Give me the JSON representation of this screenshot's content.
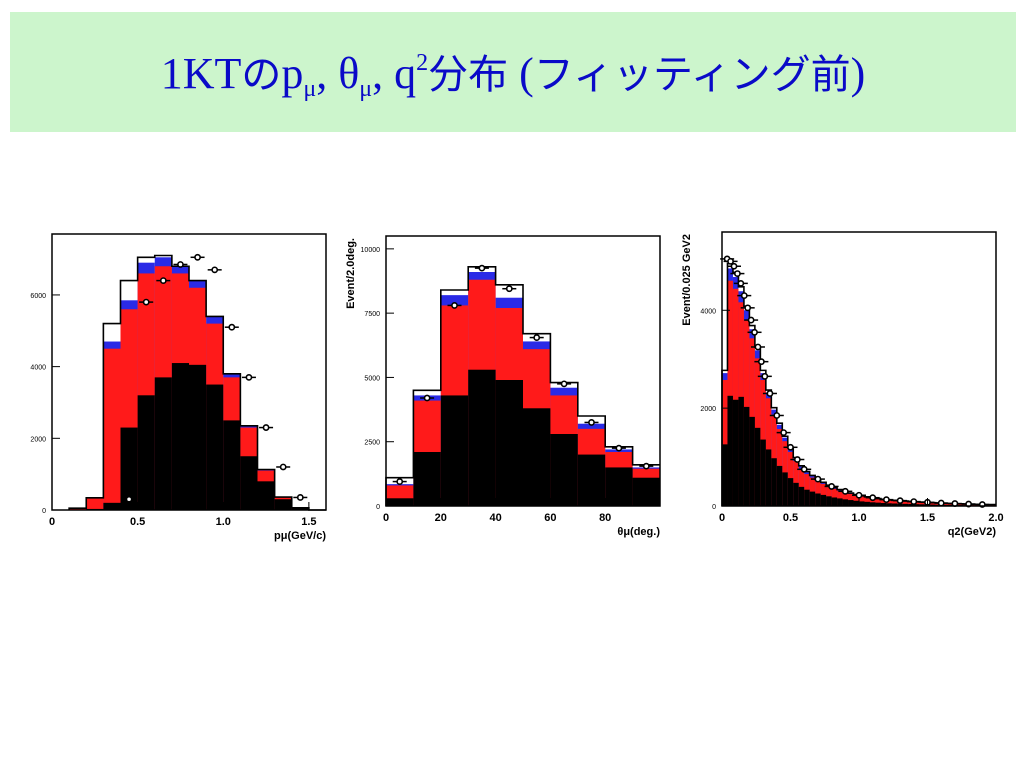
{
  "title": {
    "prefix": "1KT",
    "no": "の",
    "p": "p",
    "mu1": "μ",
    "sep1": ", ",
    "theta": "θ",
    "mu2": "μ",
    "sep2": ", ",
    "q": "q",
    "exp": "2",
    "bunpu": "分布",
    "paren_open": " (",
    "fitting": "フィッティング前",
    "paren_close": ")"
  },
  "colors": {
    "black_component": "#000000",
    "red_component": "#ff1a1a",
    "blue_component": "#2a2ae6",
    "white_component": "#ffffff",
    "outline": "#000000"
  },
  "chart_data": [
    {
      "type": "histogram",
      "stack_order": [
        "black",
        "red",
        "blue",
        "white"
      ],
      "xlabel": "pμ(GeV/c)",
      "ylabel": "",
      "xlim": [
        0,
        1.6
      ],
      "ylim": [
        0,
        7700
      ],
      "xticks": [
        0,
        0.5,
        1.0,
        1.5
      ],
      "xtick_labels": [
        "0",
        "0.5",
        "1.0",
        "1.5"
      ],
      "yticks": [
        0,
        2000,
        4000,
        6000
      ],
      "ytick_labels": [
        "0",
        "2000",
        "4000",
        "6000"
      ],
      "bin_edges": [
        0.1,
        0.2,
        0.3,
        0.4,
        0.5,
        0.6,
        0.7,
        0.8,
        0.9,
        1.0,
        1.1,
        1.2,
        1.3,
        1.4,
        1.5,
        1.6
      ],
      "black": [
        0,
        30,
        200,
        2300,
        3200,
        3700,
        4100,
        4050,
        3500,
        2500,
        1500,
        800,
        300,
        50,
        0
      ],
      "red": [
        50,
        320,
        4500,
        5600,
        6600,
        6800,
        6600,
        6200,
        5200,
        3700,
        2300,
        1100,
        350,
        60,
        0
      ],
      "blue": [
        50,
        330,
        4700,
        5850,
        6900,
        7050,
        6800,
        6400,
        5400,
        3800,
        2350,
        1130,
        360,
        60,
        0
      ],
      "white": [
        50,
        340,
        5200,
        6400,
        7050,
        7100,
        6800,
        6400,
        5400,
        3800,
        2350,
        1130,
        360,
        60,
        0
      ],
      "data_x": [
        0.45,
        0.55,
        0.65,
        0.75,
        0.85,
        0.95,
        1.05,
        1.15,
        1.25,
        1.35,
        1.45
      ],
      "data_y": [
        300,
        5800,
        6400,
        6850,
        7050,
        6700,
        5100,
        3700,
        2300,
        1200,
        350
      ]
    },
    {
      "type": "histogram",
      "stack_order": [
        "black",
        "red",
        "blue",
        "white"
      ],
      "xlabel": "θμ(deg.)",
      "ylabel": "Event/2.0deg.",
      "xlim": [
        0,
        100
      ],
      "ylim": [
        0,
        10500
      ],
      "xticks": [
        0,
        20,
        40,
        60,
        80
      ],
      "xtick_labels": [
        "0",
        "20",
        "40",
        "60",
        "80"
      ],
      "yticks": [
        0,
        2500,
        5000,
        7500,
        10000
      ],
      "ytick_labels": [
        "0",
        "2500",
        "5000",
        "7500",
        "10000"
      ],
      "bin_edges": [
        0,
        10,
        20,
        30,
        40,
        50,
        60,
        70,
        80,
        90,
        100
      ],
      "black": [
        300,
        2100,
        4300,
        5300,
        4900,
        3800,
        2800,
        2000,
        1500,
        1100
      ],
      "red": [
        800,
        4100,
        7800,
        8800,
        7700,
        6100,
        4300,
        3000,
        2100,
        1450
      ],
      "blue": [
        850,
        4300,
        8200,
        9100,
        8100,
        6400,
        4600,
        3200,
        2200,
        1500
      ],
      "white": [
        1100,
        4500,
        8400,
        9300,
        8600,
        6700,
        4800,
        3500,
        2300,
        1600
      ],
      "data_x": [
        5,
        15,
        25,
        35,
        45,
        55,
        65,
        75,
        85,
        95
      ],
      "data_y": [
        950,
        4200,
        7800,
        9250,
        8450,
        6550,
        4750,
        3250,
        2250,
        1550
      ]
    },
    {
      "type": "histogram",
      "stack_order": [
        "black",
        "red",
        "blue",
        "white"
      ],
      "xlabel": "q2(GeV2)",
      "ylabel": "Event/0.025 GeV2",
      "xlim": [
        0,
        2.0
      ],
      "ylim": [
        0,
        5600
      ],
      "xticks": [
        0,
        0.5,
        1.0,
        1.5,
        2.0
      ],
      "xtick_labels": [
        "0",
        "0.5",
        "1.0",
        "1.5",
        "2.0"
      ],
      "yticks": [
        0,
        2000,
        4000
      ],
      "ytick_labels": [
        "0",
        "2000",
        "4000"
      ],
      "data_x": [
        0.0375,
        0.0625,
        0.0875,
        0.1125,
        0.1375,
        0.1625,
        0.1875,
        0.2125,
        0.2375,
        0.2625,
        0.2875,
        0.3125,
        0.35,
        0.4,
        0.45,
        0.5,
        0.55,
        0.6,
        0.7,
        0.8,
        0.9,
        1.0,
        1.1,
        1.2,
        1.3,
        1.4,
        1.5,
        1.6,
        1.7,
        1.8,
        1.9
      ],
      "data_y": [
        5050,
        5000,
        4900,
        4750,
        4550,
        4300,
        4050,
        3800,
        3550,
        3250,
        2950,
        2650,
        2300,
        1850,
        1500,
        1200,
        950,
        750,
        550,
        400,
        300,
        220,
        170,
        130,
        110,
        90,
        75,
        60,
        50,
        40,
        30
      ]
    }
  ]
}
